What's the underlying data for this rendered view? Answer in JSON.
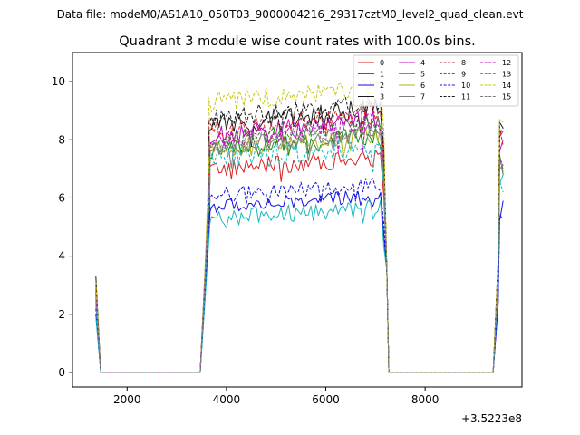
{
  "figure": {
    "suptitle": "Data file: modeM0/AS1A10_050T03_9000004216_29317cztM0_level2_quad_clean.evt"
  },
  "chart_data": {
    "type": "line",
    "title": "Quadrant 3 module wise count rates with 100.0s bins.",
    "xlabel": "",
    "ylabel": "",
    "x_offset_label": "+3.5223e8",
    "x_ticks": [
      2000,
      4000,
      6000,
      8000
    ],
    "y_ticks": [
      0,
      2,
      4,
      6,
      8,
      10
    ],
    "xlim": [
      900,
      9950
    ],
    "ylim": [
      -0.5,
      11.0
    ],
    "grid": false,
    "legend": {
      "placement": "top-right",
      "columns": 4
    },
    "x_breakpoints": [
      1370,
      1470,
      3470,
      3570,
      3670,
      7170,
      7270,
      7370,
      9370,
      9470,
      9570
    ],
    "series": [
      {
        "name": "0",
        "color": "#d62020",
        "dash": "solid",
        "start": 3.0,
        "on": [
          3.2,
          5.9,
          7.0
        ],
        "level": 7.0,
        "noise": 0.3,
        "late": [
          8.1,
          8.3
        ]
      },
      {
        "name": "1",
        "color": "#1a8a1a",
        "dash": "solid",
        "start": 2.4,
        "on": [
          3.0,
          6.6,
          7.4
        ],
        "level": 7.6,
        "noise": 0.3,
        "late": [
          7.5,
          6.8
        ]
      },
      {
        "name": "2",
        "color": "#1010e0",
        "dash": "solid",
        "start": 2.0,
        "on": [
          2.6,
          5.5,
          5.3
        ],
        "level": 5.7,
        "noise": 0.25,
        "late": [
          5.2,
          5.9
        ]
      },
      {
        "name": "3",
        "color": "#1a1a1a",
        "dash": "solid",
        "start": 3.3,
        "on": [
          3.5,
          7.3,
          8.3
        ],
        "level": 8.5,
        "noise": 0.35,
        "late": [
          8.6,
          8.4
        ]
      },
      {
        "name": "4",
        "color": "#c010c0",
        "dash": "solid",
        "start": 2.8,
        "on": [
          3.4,
          6.8,
          7.8
        ],
        "level": 8.1,
        "noise": 0.35,
        "late": [
          7.6,
          8.0
        ]
      },
      {
        "name": "5",
        "color": "#17b8c0",
        "dash": "solid",
        "start": 1.9,
        "on": [
          2.5,
          5.2,
          4.9
        ],
        "level": 5.3,
        "noise": 0.3,
        "late": [
          6.5,
          6.8
        ]
      },
      {
        "name": "6",
        "color": "#b0b020",
        "dash": "solid",
        "start": 2.6,
        "on": [
          3.0,
          6.9,
          7.5
        ],
        "level": 7.6,
        "noise": 0.3,
        "late": [
          7.3,
          7.0
        ]
      },
      {
        "name": "7",
        "color": "#7f7f7f",
        "dash": "solid",
        "start": 2.5,
        "on": [
          3.1,
          7.0,
          7.6
        ],
        "level": 7.7,
        "noise": 0.3,
        "late": [
          7.1,
          6.9
        ]
      },
      {
        "name": "8",
        "color": "#d62020",
        "dash": "dashed",
        "start": 2.9,
        "on": [
          3.3,
          7.6,
          8.7
        ],
        "level": 8.3,
        "noise": 0.35,
        "late": [
          8.4,
          7.8
        ]
      },
      {
        "name": "9",
        "color": "#1a8a1a",
        "dash": "dashed",
        "start": 2.7,
        "on": [
          3.2,
          7.1,
          7.7
        ],
        "level": 8.0,
        "noise": 0.3,
        "late": [
          7.3,
          7.0
        ]
      },
      {
        "name": "10",
        "color": "#1010e0",
        "dash": "dashed",
        "start": 2.2,
        "on": [
          2.8,
          5.7,
          5.9
        ],
        "level": 6.1,
        "noise": 0.25,
        "late": [
          5.4,
          5.3
        ]
      },
      {
        "name": "11",
        "color": "#1a1a1a",
        "dash": "dashed",
        "start": 3.1,
        "on": [
          3.4,
          7.5,
          8.5
        ],
        "level": 8.7,
        "noise": 0.35,
        "late": [
          8.2,
          8.4
        ]
      },
      {
        "name": "12",
        "color": "#c010c0",
        "dash": "dashed",
        "start": 2.7,
        "on": [
          3.3,
          7.2,
          8.0
        ],
        "level": 8.0,
        "noise": 0.35,
        "late": [
          7.4,
          7.1
        ]
      },
      {
        "name": "13",
        "color": "#17b8c0",
        "dash": "dashed",
        "start": 2.3,
        "on": [
          2.9,
          6.8,
          7.2
        ],
        "level": 7.4,
        "noise": 0.4,
        "late": [
          6.6,
          6.2
        ]
      },
      {
        "name": "14",
        "color": "#c8c810",
        "dash": "dashed",
        "start": 3.1,
        "on": [
          3.6,
          8.4,
          9.5
        ],
        "level": 9.3,
        "noise": 0.35,
        "late": [
          8.7,
          8.6
        ]
      },
      {
        "name": "15",
        "color": "#7f7f7f",
        "dash": "dashed",
        "start": 2.6,
        "on": [
          3.2,
          7.2,
          7.9
        ],
        "level": 7.8,
        "noise": 0.3,
        "late": [
          7.3,
          6.9
        ]
      }
    ]
  }
}
